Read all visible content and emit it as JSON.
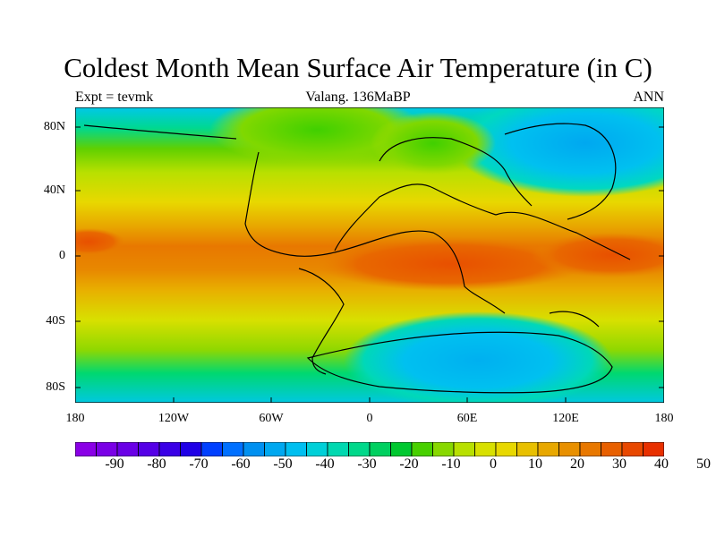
{
  "title": "Coldest Month Mean Surface Air Temperature (in C)",
  "subtitle_left": "Expt = tevmk",
  "subtitle_center": "Valang. 136MaBP",
  "subtitle_right": "ANN",
  "y_ticks": [
    "80N",
    "40N",
    "0",
    "40S",
    "80S"
  ],
  "x_ticks": [
    "180",
    "120W",
    "60W",
    "0",
    "60E",
    "120E",
    "180"
  ],
  "colorbar": {
    "labels": [
      "-90",
      "-80",
      "-70",
      "-60",
      "-50",
      "-40",
      "-30",
      "-20",
      "-10",
      "0",
      "10",
      "20",
      "30",
      "40",
      "50"
    ],
    "colors": [
      "#8a00e6",
      "#7a00e6",
      "#6a00e6",
      "#5500e6",
      "#3a00e6",
      "#2000e6",
      "#0040ff",
      "#0070ff",
      "#0090f0",
      "#00a8f0",
      "#00bff0",
      "#00d0d8",
      "#00d8b0",
      "#00d88a",
      "#00d060",
      "#00c830",
      "#48d000",
      "#88d800",
      "#b8e000",
      "#d8e000",
      "#e8d800",
      "#e8c000",
      "#e8a800",
      "#e89000",
      "#e87800",
      "#e86000",
      "#e84800",
      "#e83000"
    ]
  },
  "map_data": {
    "title": "Coldest Month Mean Surface Air Temperature (in C)",
    "variable": "Coldest month mean surface air temperature",
    "units": "C",
    "lon_range": [
      -180,
      180
    ],
    "lat_range": [
      -90,
      90
    ],
    "contour_interval": 5,
    "colorbar_range": [
      -90,
      50
    ]
  }
}
